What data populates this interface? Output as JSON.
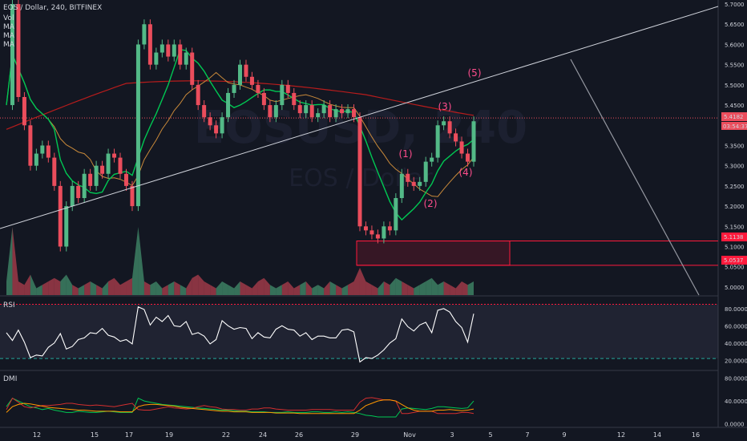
{
  "header": {
    "title": "EOS / Dollar, 240, BITFINEX",
    "indicators": [
      "Vol",
      "MA",
      "MA",
      "MA"
    ]
  },
  "watermark": {
    "symbol": "EOSUSD, 240",
    "name": "EOS / Dollar"
  },
  "price_badges": {
    "current": "5.4182",
    "countdown": "03:54:37",
    "box_top": "5.1138",
    "box_bottom": "5.0537"
  },
  "wave_labels": [
    "(1)",
    "(2)",
    "(3)",
    "(4)",
    "(5)"
  ],
  "panes": {
    "rsi": "RSI",
    "dmi": "DMI"
  },
  "colors": {
    "up": "#53b987",
    "down": "#eb4d5c",
    "ma_green": "#00c853",
    "ma_orange": "#c8893a",
    "ma_red": "#b71c1c",
    "rsi": "#ffffff",
    "level": "#26a69a",
    "box": "#ff1a3c"
  },
  "chart_data": [
    {
      "type": "candlestick",
      "title": "EOS / Dollar, 240, BITFINEX",
      "x_ticks": [
        "12",
        "15",
        "17",
        "19",
        "22",
        "24",
        "26",
        "29",
        "Nov",
        "3",
        "5",
        "7",
        "9",
        "12",
        "14",
        "16"
      ],
      "y_ticks": [
        5.0,
        5.05,
        5.1,
        5.15,
        5.2,
        5.25,
        5.3,
        5.35,
        5.4,
        5.45,
        5.5,
        5.55,
        5.6,
        5.65,
        5.7
      ],
      "ylim": [
        4.98,
        5.71
      ],
      "close_path": [
        [
          0,
          5.45
        ],
        [
          1,
          5.7
        ],
        [
          2,
          5.47
        ],
        [
          3,
          5.4
        ],
        [
          4,
          5.3
        ],
        [
          5,
          5.33
        ],
        [
          6,
          5.35
        ],
        [
          7,
          5.32
        ],
        [
          8,
          5.25
        ],
        [
          9,
          5.1
        ],
        [
          10,
          5.2
        ],
        [
          11,
          5.25
        ],
        [
          12,
          5.22
        ],
        [
          13,
          5.28
        ],
        [
          14,
          5.25
        ],
        [
          15,
          5.3
        ],
        [
          16,
          5.28
        ],
        [
          17,
          5.33
        ],
        [
          18,
          5.32
        ],
        [
          19,
          5.28
        ],
        [
          20,
          5.25
        ],
        [
          21,
          5.2
        ],
        [
          22,
          5.6
        ],
        [
          23,
          5.65
        ],
        [
          24,
          5.55
        ],
        [
          25,
          5.58
        ],
        [
          26,
          5.6
        ],
        [
          27,
          5.57
        ],
        [
          28,
          5.6
        ],
        [
          29,
          5.55
        ],
        [
          30,
          5.58
        ],
        [
          31,
          5.5
        ],
        [
          32,
          5.45
        ],
        [
          33,
          5.42
        ],
        [
          34,
          5.4
        ],
        [
          35,
          5.38
        ],
        [
          36,
          5.42
        ],
        [
          37,
          5.48
        ],
        [
          38,
          5.5
        ],
        [
          39,
          5.55
        ],
        [
          40,
          5.52
        ],
        [
          41,
          5.5
        ],
        [
          42,
          5.48
        ],
        [
          43,
          5.45
        ],
        [
          44,
          5.42
        ],
        [
          45,
          5.45
        ],
        [
          46,
          5.5
        ],
        [
          47,
          5.48
        ],
        [
          48,
          5.45
        ],
        [
          49,
          5.43
        ],
        [
          50,
          5.45
        ],
        [
          51,
          5.42
        ],
        [
          52,
          5.43
        ],
        [
          53,
          5.45
        ],
        [
          54,
          5.42
        ],
        [
          55,
          5.44
        ],
        [
          56,
          5.43
        ],
        [
          57,
          5.44
        ],
        [
          58,
          5.42
        ],
        [
          59,
          5.15
        ],
        [
          60,
          5.14
        ],
        [
          61,
          5.13
        ],
        [
          62,
          5.12
        ],
        [
          63,
          5.15
        ],
        [
          64,
          5.14
        ],
        [
          65,
          5.22
        ],
        [
          66,
          5.28
        ],
        [
          67,
          5.26
        ],
        [
          68,
          5.25
        ],
        [
          69,
          5.26
        ],
        [
          70,
          5.31
        ],
        [
          71,
          5.32
        ],
        [
          72,
          5.4
        ],
        [
          73,
          5.41
        ],
        [
          74,
          5.38
        ],
        [
          75,
          5.36
        ],
        [
          76,
          5.33
        ],
        [
          77,
          5.31
        ],
        [
          78,
          5.41
        ]
      ],
      "volume": [
        0.2,
        1.0,
        0.2,
        0.15,
        0.3,
        0.1,
        0.15,
        0.2,
        0.25,
        0.2,
        0.3,
        0.15,
        0.1,
        0.15,
        0.2,
        0.15,
        0.1,
        0.2,
        0.25,
        0.15,
        0.2,
        0.25,
        1.0,
        0.2,
        0.15,
        0.2,
        0.1,
        0.15,
        0.2,
        0.15,
        0.1,
        0.25,
        0.3,
        0.2,
        0.15,
        0.1,
        0.2,
        0.15,
        0.1,
        0.2,
        0.15,
        0.1,
        0.2,
        0.25,
        0.15,
        0.1,
        0.15,
        0.2,
        0.1,
        0.15,
        0.2,
        0.1,
        0.15,
        0.1,
        0.2,
        0.15,
        0.1,
        0.15,
        0.2,
        0.4,
        0.2,
        0.15,
        0.1,
        0.2,
        0.15,
        0.25,
        0.2,
        0.15,
        0.1,
        0.15,
        0.2,
        0.25,
        0.15,
        0.2,
        0.15,
        0.1,
        0.2,
        0.15,
        0.2
      ],
      "annotations": [
        "(1)",
        "(2)",
        "(3)",
        "(4)",
        "(5)"
      ]
    },
    {
      "type": "line",
      "title": "RSI",
      "y_ticks": [
        20,
        40,
        60,
        80
      ],
      "levels": [
        22,
        85
      ],
      "values": [
        52,
        43,
        55,
        41,
        23,
        26,
        25,
        35,
        40,
        51,
        33,
        36,
        44,
        46,
        52,
        51,
        57,
        49,
        47,
        42,
        44,
        39,
        82,
        79,
        61,
        70,
        65,
        72,
        60,
        59,
        65,
        50,
        52,
        48,
        39,
        44,
        66,
        60,
        56,
        58,
        57,
        45,
        52,
        47,
        46,
        56,
        60,
        56,
        55,
        48,
        52,
        44,
        48,
        48,
        46,
        46,
        55,
        56,
        53,
        18,
        23,
        22,
        26,
        32,
        40,
        45,
        68,
        59,
        54,
        61,
        64,
        52,
        78,
        80,
        76,
        65,
        58,
        41,
        74
      ]
    },
    {
      "type": "line",
      "title": "DMI",
      "y_ticks": [
        0,
        40,
        80
      ],
      "series": [
        {
          "values": [
            30,
            45,
            40,
            35,
            30,
            28,
            25,
            27,
            24,
            22,
            20,
            20,
            22,
            21,
            20,
            20,
            21,
            22,
            21,
            20,
            20,
            20,
            45,
            40,
            38,
            36,
            34,
            33,
            32,
            31,
            30,
            29,
            28,
            27,
            26,
            25,
            24,
            24,
            23,
            22,
            22,
            21,
            21,
            21,
            20,
            20,
            20,
            21,
            20,
            20,
            20,
            21,
            21,
            20,
            20,
            21,
            20,
            21,
            20,
            18,
            15,
            14,
            12,
            12,
            12,
            12,
            26,
            28,
            27,
            26,
            25,
            27,
            30,
            30,
            29,
            28,
            27,
            28,
            40
          ]
        },
        {
          "values": [
            25,
            45,
            38,
            30,
            28,
            30,
            32,
            32,
            33,
            34,
            36,
            36,
            34,
            33,
            32,
            33,
            32,
            31,
            30,
            32,
            34,
            36,
            25,
            24,
            24,
            26,
            28,
            30,
            28,
            27,
            26,
            27,
            30,
            32,
            30,
            29,
            26,
            25,
            25,
            24,
            24,
            26,
            26,
            28,
            28,
            26,
            25,
            24,
            24,
            24,
            24,
            25,
            25,
            25,
            25,
            24,
            24,
            24,
            24,
            38,
            45,
            46,
            44,
            42,
            42,
            40,
            18,
            18,
            20,
            22,
            22,
            22,
            18,
            18,
            18,
            18,
            20,
            20,
            18
          ]
        },
        {
          "values": [
            20,
            30,
            34,
            36,
            35,
            33,
            31,
            29,
            28,
            27,
            26,
            25,
            24,
            24,
            23,
            22,
            22,
            22,
            22,
            21,
            21,
            21,
            30,
            33,
            34,
            34,
            33,
            32,
            31,
            29,
            28,
            27,
            26,
            25,
            24,
            23,
            22,
            22,
            21,
            21,
            21,
            20,
            20,
            20,
            20,
            19,
            19,
            19,
            19,
            18,
            18,
            18,
            18,
            18,
            18,
            18,
            18,
            18,
            18,
            24,
            32,
            36,
            40,
            42,
            42,
            40,
            34,
            28,
            24,
            22,
            22,
            22,
            24,
            24,
            25,
            24,
            23,
            24,
            26
          ]
        }
      ]
    }
  ]
}
